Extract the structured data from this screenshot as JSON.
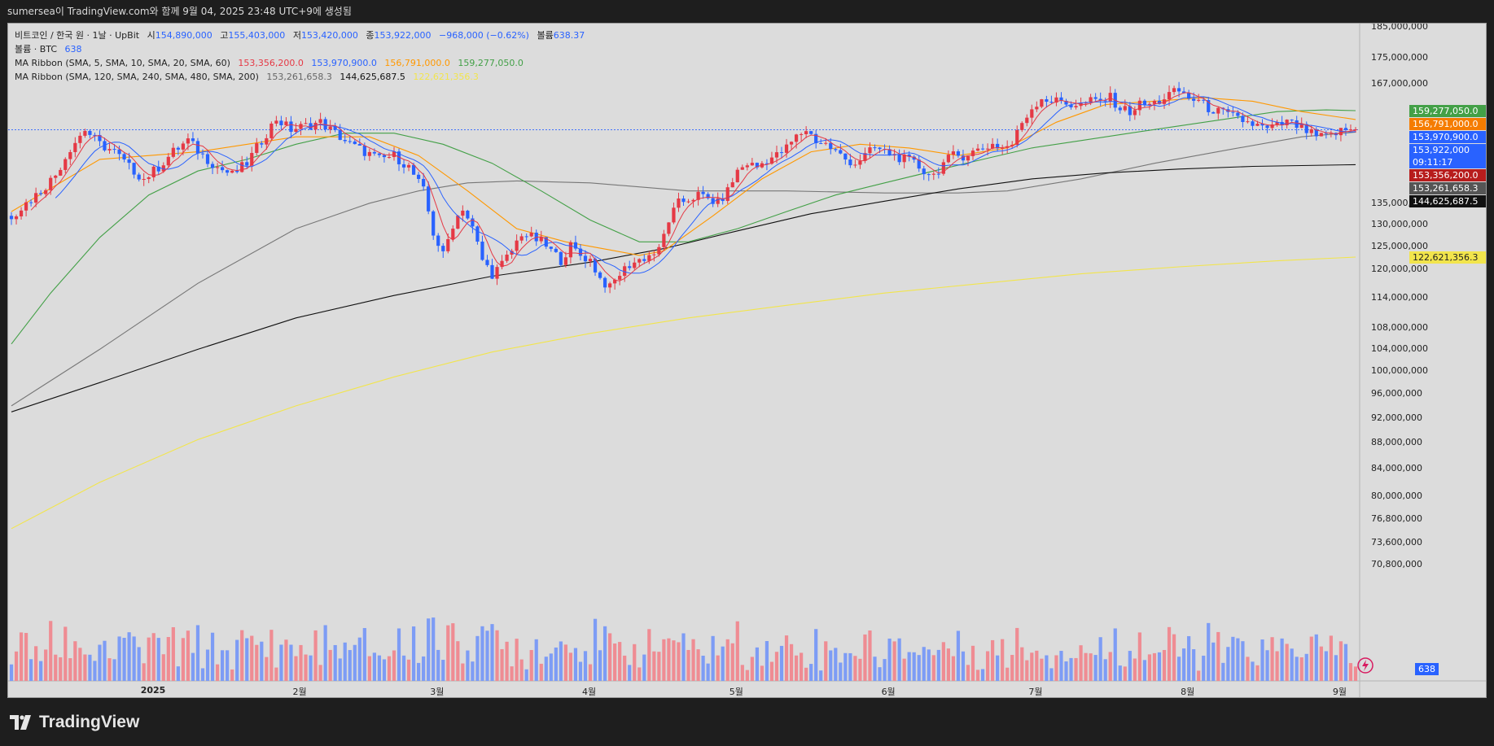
{
  "header": {
    "text": "sumersea이 TradingView.com와 함께 9월 04, 2025 23:48 UTC+9에 생성됨"
  },
  "legend": {
    "symbol": "비트코인 / 한국 원 · 1날 · UpBit",
    "o_label": "시",
    "o": "154,890,000",
    "h_label": "고",
    "h": "155,403,000",
    "l_label": "저",
    "l": "153,420,000",
    "c_label": "종",
    "c": "153,922,000",
    "change": "−968,000 (−0.62%)",
    "vol_label": "볼륨",
    "vol": "638.37",
    "vol2_label": "볼륨 · BTC",
    "vol2": "638",
    "ribbon1_label": "MA Ribbon (SMA, 5, SMA, 10, SMA, 20, SMA, 60)",
    "ribbon1_values": [
      "153,356,200.0",
      "153,970,900.0",
      "156,791,000.0",
      "159,277,050.0"
    ],
    "ribbon2_label": "MA Ribbon (SMA, 120, SMA, 240, SMA, 480, SMA, 200)",
    "ribbon2_values": [
      "153,261,658.3",
      "144,625,687.5",
      "122,621,356.3"
    ]
  },
  "price_tags": [
    {
      "text": "159,277,050.0",
      "color": "#43a047",
      "price": 159277050
    },
    {
      "text": "156,791,000.0",
      "color": "#f57c00",
      "price": 156791000
    },
    {
      "text": "153,970,900.0",
      "color": "#2962ff",
      "price": 153970900
    },
    {
      "text": "153,922,000",
      "color": "#2962ff",
      "price": 153922000,
      "sub": "09:11:17"
    },
    {
      "text": "153,356,200.0",
      "color": "#b71c1c",
      "price": 153356200
    },
    {
      "text": "153,261,658.3",
      "color": "#555555",
      "price": 153261658
    },
    {
      "text": "144,625,687.5",
      "color": "#111111",
      "price": 144625687
    },
    {
      "text": "122,621,356.3",
      "color": "#f2e54c",
      "price": 122621356,
      "textcolor": "#222222"
    }
  ],
  "volume_tag": {
    "text": "638",
    "color": "#2962ff"
  },
  "footer": {
    "brand": "TradingView"
  },
  "colors": {
    "up": "#e53945",
    "down": "#2962ff",
    "up_vol": "#ef8c93",
    "down_vol": "#7d9cf5",
    "ma5": "#e53945",
    "ma10": "#2962ff",
    "ma20": "#ff9800",
    "ma60": "#43a047",
    "ma120": "#777777",
    "ma240": "#111111",
    "ma200": "#f2e54c"
  },
  "chart_data": {
    "type": "candlestick",
    "y_ticks": [
      185000000,
      175000000,
      167000000,
      135000000,
      130000000,
      125000000,
      120000000,
      114000000,
      108000000,
      104000000,
      100000000,
      96000000,
      92000000,
      88000000,
      84000000,
      80000000,
      76800000,
      73600000,
      70800000
    ],
    "y_tick_labels": [
      "185,000,000",
      "175,000,000",
      "167,000,000",
      "135,000,000",
      "130,000,000",
      "125,000,000",
      "120,000,000",
      "114,000,000",
      "108,000,000",
      "104,000,000",
      "100,000,000",
      "96,000,000",
      "92,000,000",
      "88,000,000",
      "84,000,000",
      "80,000,000",
      "76,800,000",
      "73,600,000",
      "70,800,000"
    ],
    "y_scale": "log",
    "x_labels": [
      {
        "label": "2025",
        "day": 0
      },
      {
        "label": "2월",
        "day": 31
      },
      {
        "label": "3월",
        "day": 59
      },
      {
        "label": "4월",
        "day": 90
      },
      {
        "label": "5월",
        "day": 120
      },
      {
        "label": "6월",
        "day": 151
      },
      {
        "label": "7월",
        "day": 181
      },
      {
        "label": "8월",
        "day": 212
      },
      {
        "label": "9월",
        "day": 243
      }
    ],
    "first_day": -28,
    "last_day": 246,
    "close_series": [
      [
        -28,
        132000000
      ],
      [
        -25,
        135000000
      ],
      [
        -22,
        138000000
      ],
      [
        -19,
        142000000
      ],
      [
        -16,
        149000000
      ],
      [
        -13,
        154000000
      ],
      [
        -10,
        150000000
      ],
      [
        -7,
        148000000
      ],
      [
        -4,
        144000000
      ],
      [
        -1,
        141000000
      ],
      [
        2,
        144000000
      ],
      [
        5,
        148000000
      ],
      [
        8,
        151000000
      ],
      [
        11,
        147000000
      ],
      [
        14,
        144000000
      ],
      [
        17,
        142000000
      ],
      [
        20,
        145000000
      ],
      [
        23,
        151000000
      ],
      [
        26,
        157000000
      ],
      [
        29,
        154000000
      ],
      [
        32,
        155000000
      ],
      [
        35,
        156000000
      ],
      [
        38,
        153000000
      ],
      [
        41,
        150000000
      ],
      [
        44,
        148000000
      ],
      [
        47,
        146000000
      ],
      [
        50,
        147000000
      ],
      [
        53,
        144000000
      ],
      [
        56,
        138000000
      ],
      [
        58,
        128000000
      ],
      [
        60,
        123000000
      ],
      [
        62,
        130000000
      ],
      [
        64,
        134000000
      ],
      [
        66,
        129000000
      ],
      [
        68,
        122000000
      ],
      [
        70,
        119000000
      ],
      [
        72,
        121000000
      ],
      [
        74,
        124000000
      ],
      [
        76,
        128000000
      ],
      [
        78,
        127000000
      ],
      [
        80,
        126000000
      ],
      [
        82,
        124000000
      ],
      [
        84,
        122000000
      ],
      [
        86,
        125000000
      ],
      [
        88,
        123000000
      ],
      [
        90,
        122000000
      ],
      [
        92,
        118000000
      ],
      [
        94,
        116000000
      ],
      [
        96,
        119000000
      ],
      [
        98,
        121000000
      ],
      [
        100,
        122000000
      ],
      [
        102,
        123000000
      ],
      [
        104,
        124000000
      ],
      [
        106,
        131000000
      ],
      [
        108,
        135000000
      ],
      [
        110,
        136000000
      ],
      [
        112,
        137000000
      ],
      [
        114,
        136000000
      ],
      [
        116,
        135000000
      ],
      [
        118,
        138000000
      ],
      [
        120,
        143000000
      ],
      [
        122,
        145000000
      ],
      [
        124,
        144000000
      ],
      [
        126,
        146000000
      ],
      [
        128,
        147000000
      ],
      [
        130,
        149000000
      ],
      [
        132,
        152000000
      ],
      [
        134,
        154000000
      ],
      [
        136,
        151000000
      ],
      [
        138,
        150000000
      ],
      [
        140,
        148000000
      ],
      [
        142,
        146000000
      ],
      [
        144,
        145000000
      ],
      [
        146,
        147000000
      ],
      [
        148,
        149000000
      ],
      [
        150,
        148000000
      ],
      [
        152,
        147000000
      ],
      [
        154,
        146000000
      ],
      [
        156,
        145000000
      ],
      [
        158,
        143000000
      ],
      [
        160,
        142000000
      ],
      [
        162,
        145000000
      ],
      [
        164,
        147000000
      ],
      [
        166,
        147000000
      ],
      [
        168,
        148000000
      ],
      [
        170,
        149000000
      ],
      [
        172,
        150000000
      ],
      [
        174,
        149000000
      ],
      [
        176,
        150000000
      ],
      [
        178,
        156000000
      ],
      [
        180,
        160000000
      ],
      [
        182,
        163000000
      ],
      [
        184,
        162000000
      ],
      [
        186,
        162000000
      ],
      [
        188,
        161000000
      ],
      [
        190,
        161000000
      ],
      [
        192,
        162000000
      ],
      [
        194,
        162000000
      ],
      [
        196,
        163000000
      ],
      [
        198,
        160000000
      ],
      [
        200,
        159000000
      ],
      [
        202,
        161000000
      ],
      [
        204,
        161000000
      ],
      [
        206,
        162000000
      ],
      [
        208,
        164000000
      ],
      [
        210,
        165000000
      ],
      [
        212,
        163000000
      ],
      [
        214,
        162000000
      ],
      [
        216,
        160000000
      ],
      [
        218,
        159000000
      ],
      [
        220,
        158000000
      ],
      [
        222,
        157000000
      ],
      [
        224,
        156000000
      ],
      [
        226,
        155000000
      ],
      [
        228,
        154000000
      ],
      [
        230,
        155000000
      ],
      [
        232,
        156000000
      ],
      [
        234,
        155000000
      ],
      [
        236,
        153500000
      ],
      [
        238,
        152000000
      ],
      [
        240,
        152000000
      ],
      [
        242,
        153000000
      ],
      [
        244,
        154000000
      ],
      [
        246,
        153922000
      ]
    ],
    "ma_lines": {
      "ma20": [
        [
          -28,
          133000000
        ],
        [
          -10,
          146000000
        ],
        [
          10,
          148000000
        ],
        [
          30,
          152000000
        ],
        [
          45,
          152000000
        ],
        [
          55,
          147000000
        ],
        [
          65,
          138000000
        ],
        [
          75,
          129000000
        ],
        [
          85,
          126000000
        ],
        [
          95,
          124000000
        ],
        [
          100,
          123000000
        ],
        [
          105,
          124000000
        ],
        [
          115,
          132000000
        ],
        [
          125,
          141000000
        ],
        [
          135,
          148000000
        ],
        [
          145,
          150000000
        ],
        [
          155,
          149000000
        ],
        [
          165,
          147000000
        ],
        [
          175,
          149000000
        ],
        [
          185,
          156000000
        ],
        [
          195,
          161000000
        ],
        [
          205,
          162000000
        ],
        [
          215,
          163000000
        ],
        [
          225,
          162000000
        ],
        [
          235,
          159000000
        ],
        [
          246,
          156791000
        ]
      ],
      "ma60": [
        [
          -28,
          105000000
        ],
        [
          -20,
          115000000
        ],
        [
          -10,
          127000000
        ],
        [
          0,
          137000000
        ],
        [
          10,
          143000000
        ],
        [
          20,
          146000000
        ],
        [
          30,
          150000000
        ],
        [
          40,
          153000000
        ],
        [
          50,
          153000000
        ],
        [
          60,
          150000000
        ],
        [
          70,
          145000000
        ],
        [
          80,
          138000000
        ],
        [
          90,
          131000000
        ],
        [
          100,
          126000000
        ],
        [
          110,
          126000000
        ],
        [
          120,
          129000000
        ],
        [
          130,
          133000000
        ],
        [
          140,
          137000000
        ],
        [
          150,
          140000000
        ],
        [
          160,
          143000000
        ],
        [
          170,
          146000000
        ],
        [
          180,
          149000000
        ],
        [
          190,
          151000000
        ],
        [
          200,
          153000000
        ],
        [
          210,
          155000000
        ],
        [
          220,
          157000000
        ],
        [
          230,
          159000000
        ],
        [
          240,
          159500000
        ],
        [
          246,
          159277050
        ]
      ],
      "ma120": [
        [
          -28,
          94000000
        ],
        [
          -10,
          104000000
        ],
        [
          10,
          117000000
        ],
        [
          30,
          129000000
        ],
        [
          45,
          135000000
        ],
        [
          55,
          138000000
        ],
        [
          65,
          140000000
        ],
        [
          75,
          140500000
        ],
        [
          90,
          140000000
        ],
        [
          110,
          138000000
        ],
        [
          130,
          138000000
        ],
        [
          150,
          137500000
        ],
        [
          165,
          137500000
        ],
        [
          175,
          138000000
        ],
        [
          190,
          141000000
        ],
        [
          205,
          145000000
        ],
        [
          220,
          148500000
        ],
        [
          235,
          152000000
        ],
        [
          246,
          153261658
        ]
      ],
      "ma240": [
        [
          -28,
          93000000
        ],
        [
          -10,
          98000000
        ],
        [
          10,
          104000000
        ],
        [
          30,
          110000000
        ],
        [
          50,
          114500000
        ],
        [
          70,
          118500000
        ],
        [
          90,
          121500000
        ],
        [
          105,
          124500000
        ],
        [
          120,
          128500000
        ],
        [
          135,
          132500000
        ],
        [
          150,
          135500000
        ],
        [
          165,
          138500000
        ],
        [
          180,
          141000000
        ],
        [
          195,
          142500000
        ],
        [
          210,
          143500000
        ],
        [
          225,
          144200000
        ],
        [
          246,
          144625687
        ]
      ],
      "ma200": [
        [
          -28,
          75500000
        ],
        [
          -10,
          82000000
        ],
        [
          10,
          88500000
        ],
        [
          30,
          94000000
        ],
        [
          50,
          99000000
        ],
        [
          70,
          103500000
        ],
        [
          90,
          107000000
        ],
        [
          110,
          110000000
        ],
        [
          130,
          112500000
        ],
        [
          150,
          115000000
        ],
        [
          170,
          117000000
        ],
        [
          190,
          119000000
        ],
        [
          210,
          120500000
        ],
        [
          230,
          121800000
        ],
        [
          246,
          122621356
        ]
      ]
    }
  }
}
